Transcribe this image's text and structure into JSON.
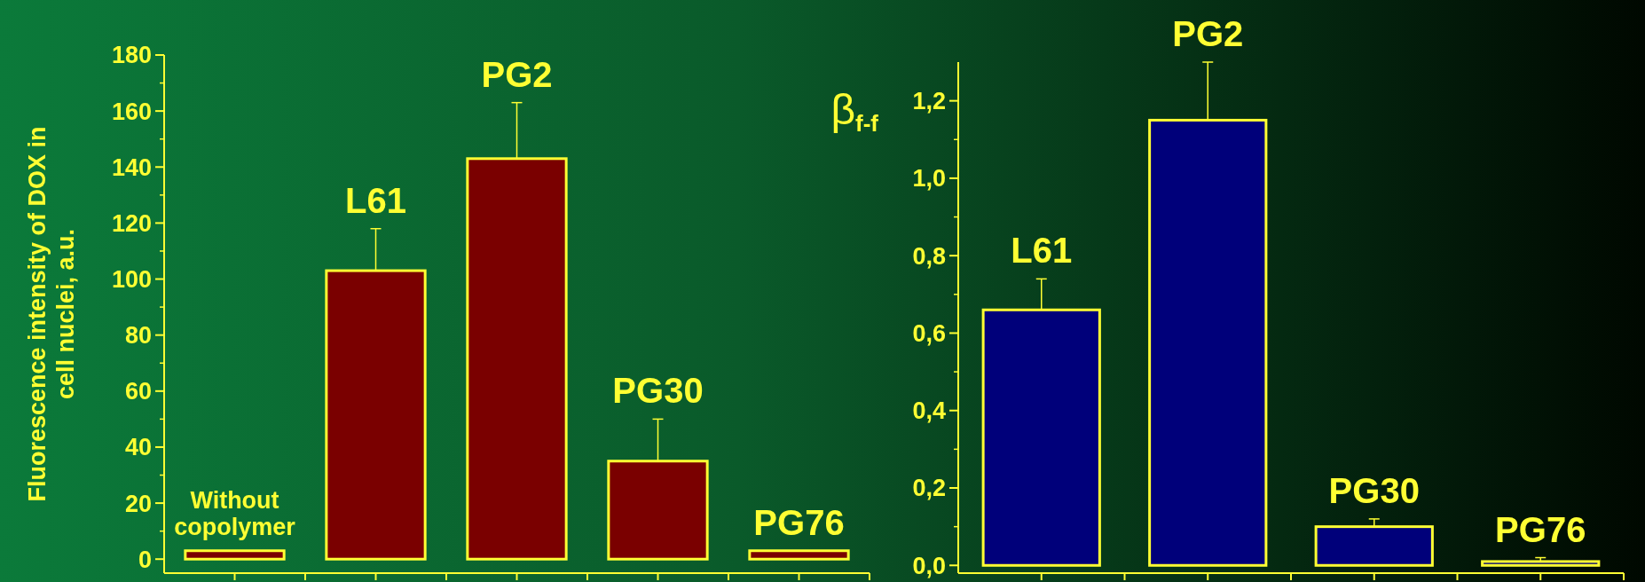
{
  "chart_data": [
    {
      "type": "bar",
      "ylabel": "Fluorescence intensity of DOX in cell nuclei, a.u.",
      "categories": [
        "Without copolymer",
        "L61",
        "PG2",
        "PG30",
        "PG76"
      ],
      "values": [
        3,
        103,
        143,
        35,
        3
      ],
      "errors": [
        null,
        [
          103,
          118
        ],
        [
          143,
          163
        ],
        [
          35,
          50
        ],
        null
      ],
      "color": "#7a0000",
      "ylim": [
        -5,
        180
      ],
      "yticks": [
        0,
        20,
        40,
        60,
        80,
        100,
        120,
        140,
        160,
        180
      ],
      "tick_labels": "y"
    },
    {
      "type": "bar",
      "ylabel": "β$_{f-f}$",
      "categories": [
        "L61",
        "PG2",
        "PG30",
        "PG76"
      ],
      "values": [
        0.66,
        1.15,
        0.1,
        0.01
      ],
      "errors": [
        [
          0.66,
          0.74
        ],
        [
          1.15,
          1.3
        ],
        [
          0.1,
          0.12
        ],
        [
          0.01,
          0.02
        ]
      ],
      "color": "#00007a",
      "ylim": [
        -0.02,
        1.3
      ],
      "yticks": [
        {
          "value": 0,
          "label": "0,0"
        },
        {
          "value": 0.2,
          "label": "0,2"
        },
        {
          "value": 0.4,
          "label": "0,4"
        },
        {
          "value": 0.6,
          "label": "0,6"
        },
        {
          "value": 0.8,
          "label": "0,8"
        },
        {
          "value": 1,
          "label": "1,0"
        },
        {
          "value": 1.2,
          "label": "1,2"
        }
      ],
      "tick_labels": "y"
    }
  ]
}
